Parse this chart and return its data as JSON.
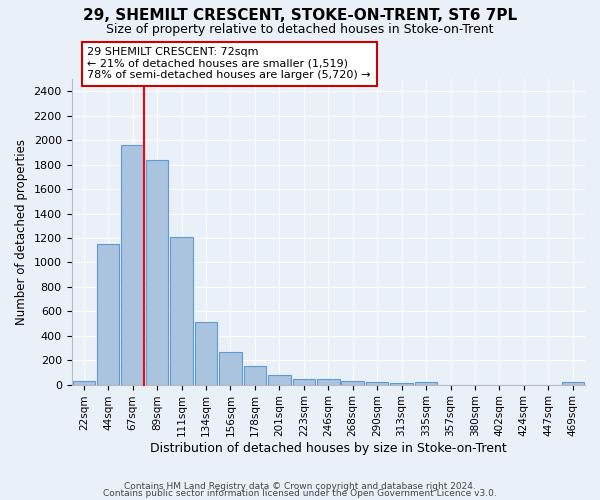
{
  "title": "29, SHEMILT CRESCENT, STOKE-ON-TRENT, ST6 7PL",
  "subtitle": "Size of property relative to detached houses in Stoke-on-Trent",
  "xlabel": "Distribution of detached houses by size in Stoke-on-Trent",
  "ylabel": "Number of detached properties",
  "categories": [
    "22sqm",
    "44sqm",
    "67sqm",
    "89sqm",
    "111sqm",
    "134sqm",
    "156sqm",
    "178sqm",
    "201sqm",
    "223sqm",
    "246sqm",
    "268sqm",
    "290sqm",
    "313sqm",
    "335sqm",
    "357sqm",
    "380sqm",
    "402sqm",
    "424sqm",
    "447sqm",
    "469sqm"
  ],
  "values": [
    30,
    1150,
    1960,
    1840,
    1210,
    510,
    265,
    155,
    80,
    48,
    42,
    30,
    22,
    15,
    20,
    0,
    0,
    0,
    0,
    0,
    20
  ],
  "bar_color": "#aac4e0",
  "bar_edge_color": "#5b9bd5",
  "ylim": [
    0,
    2500
  ],
  "yticks": [
    0,
    200,
    400,
    600,
    800,
    1000,
    1200,
    1400,
    1600,
    1800,
    2000,
    2200,
    2400
  ],
  "property_line_label": "29 SHEMILT CRESCENT: 72sqm",
  "annotation_line1": "← 21% of detached houses are smaller (1,519)",
  "annotation_line2": "78% of semi-detached houses are larger (5,720) →",
  "annotation_box_color": "#cc0000",
  "footer_line1": "Contains HM Land Registry data © Crown copyright and database right 2024.",
  "footer_line2": "Contains public sector information licensed under the Open Government Licence v3.0.",
  "background_color": "#eaf0f8",
  "axes_background": "#eaf0f8",
  "grid_color": "#ffffff",
  "line_x_index": 2.45
}
